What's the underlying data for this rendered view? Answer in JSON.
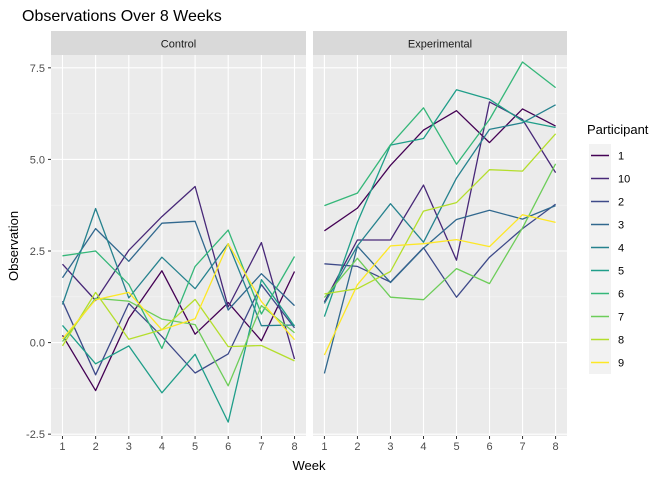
{
  "chart_data": {
    "type": "line",
    "title": "Observations Over 8 Weeks",
    "xlabel": "Week",
    "ylabel": "Observation",
    "x": [
      1,
      2,
      3,
      4,
      5,
      6,
      7,
      8
    ],
    "x_ticks": [
      "1",
      "2",
      "3",
      "4",
      "5",
      "6",
      "7",
      "8"
    ],
    "y_ticks": [
      "-2.5",
      "0.0",
      "2.5",
      "5.0",
      "7.5"
    ],
    "ylim": [
      -2.55,
      7.85
    ],
    "grid": true,
    "legend_position": "right",
    "legend_title": "Participant",
    "legend_order": [
      "1",
      "10",
      "2",
      "3",
      "4",
      "5",
      "6",
      "7",
      "8",
      "9"
    ],
    "colors": {
      "1": "#440154",
      "10": "#482878",
      "2": "#3E4A89",
      "3": "#31688E",
      "4": "#26828E",
      "5": "#1F9E89",
      "6": "#35B779",
      "7": "#6DCD59",
      "8": "#B4DE2C",
      "9": "#FDE725"
    },
    "panels": [
      {
        "label": "Control",
        "series": [
          {
            "name": "1",
            "values": [
              0.2,
              -1.31,
              0.66,
              1.96,
              0.23,
              1.09,
              0.05,
              1.94
            ]
          },
          {
            "name": "10",
            "values": [
              2.14,
              1.15,
              2.52,
              3.44,
              4.26,
              0.97,
              2.73,
              -0.45
            ]
          },
          {
            "name": "2",
            "values": [
              1.13,
              -0.88,
              1.07,
              0.17,
              -0.83,
              -0.31,
              1.58,
              0.4
            ]
          },
          {
            "name": "3",
            "values": [
              1.77,
              3.11,
              2.22,
              3.26,
              3.31,
              0.89,
              1.88,
              1.01
            ]
          },
          {
            "name": "4",
            "values": [
              1.04,
              3.66,
              1.22,
              2.33,
              1.47,
              2.7,
              0.46,
              0.48
            ]
          },
          {
            "name": "5",
            "values": [
              0.47,
              -0.58,
              -0.09,
              -1.37,
              -0.32,
              -2.17,
              1.72,
              0.45
            ]
          },
          {
            "name": "6",
            "values": [
              2.37,
              2.5,
              1.59,
              -0.16,
              2.08,
              3.07,
              0.78,
              2.35
            ]
          },
          {
            "name": "7",
            "values": [
              0.03,
              1.21,
              1.13,
              0.64,
              0.49,
              -1.18,
              1.01,
              0.27
            ]
          },
          {
            "name": "8",
            "values": [
              -0.09,
              1.37,
              0.09,
              0.35,
              1.18,
              -0.11,
              -0.08,
              -0.5
            ]
          },
          {
            "name": "9",
            "values": [
              0.1,
              1.17,
              1.37,
              0.35,
              0.65,
              2.7,
              1.12,
              0.08
            ]
          }
        ]
      },
      {
        "label": "Experimental",
        "series": [
          {
            "name": "1",
            "values": [
              3.05,
              3.67,
              4.84,
              5.8,
              6.33,
              5.46,
              6.38,
              5.91
            ]
          },
          {
            "name": "10",
            "values": [
              1.11,
              2.8,
              2.8,
              4.3,
              2.25,
              6.57,
              6.09,
              4.64
            ]
          },
          {
            "name": "2",
            "values": [
              2.15,
              2.08,
              1.65,
              2.59,
              1.24,
              2.33,
              3.11,
              3.78
            ]
          },
          {
            "name": "3",
            "values": [
              -0.84,
              2.63,
              1.64,
              2.58,
              3.36,
              3.61,
              3.37,
              3.74
            ]
          },
          {
            "name": "4",
            "values": [
              1.07,
              2.64,
              3.79,
              2.74,
              4.49,
              5.82,
              6.0,
              6.49
            ]
          },
          {
            "name": "5",
            "values": [
              0.71,
              3.28,
              5.39,
              5.57,
              6.9,
              6.64,
              6.05,
              5.87
            ]
          },
          {
            "name": "6",
            "values": [
              3.74,
              4.08,
              5.4,
              6.41,
              4.87,
              6.09,
              7.66,
              6.96
            ]
          },
          {
            "name": "7",
            "values": [
              1.23,
              2.3,
              1.24,
              1.17,
              2.02,
              1.61,
              3.13,
              4.88
            ]
          },
          {
            "name": "8",
            "values": [
              1.33,
              1.47,
              1.94,
              3.59,
              3.82,
              4.72,
              4.68,
              5.7
            ]
          },
          {
            "name": "9",
            "values": [
              -0.34,
              1.58,
              2.64,
              2.7,
              2.81,
              2.62,
              3.49,
              3.28
            ]
          }
        ]
      }
    ]
  }
}
